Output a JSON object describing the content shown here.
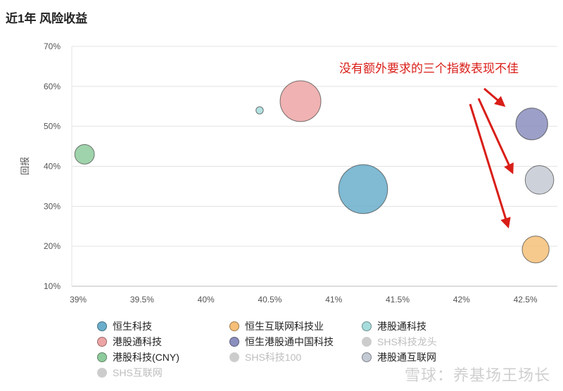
{
  "chart_data": {
    "type": "scatter",
    "title": "近1年 风险收益",
    "xlabel": "",
    "ylabel": "回报",
    "xlim": [
      38.95,
      42.75
    ],
    "ylim": [
      10,
      70
    ],
    "x_ticks": [
      "39%",
      "39.5%",
      "40%",
      "40.5%",
      "41%",
      "41.5%",
      "42%",
      "42.5%"
    ],
    "x_tick_values": [
      39,
      39.5,
      40,
      40.5,
      41,
      41.5,
      42,
      42.5
    ],
    "y_ticks": [
      "10%",
      "20%",
      "30%",
      "40%",
      "50%",
      "60%",
      "70%"
    ],
    "y_tick_values": [
      10,
      20,
      30,
      40,
      50,
      60,
      70
    ],
    "grid": "horizontal",
    "series": [
      {
        "name": "恒生科技",
        "x": 41.23,
        "y": 34.3,
        "size": 6.0,
        "color": "#6aaecb",
        "visible": true
      },
      {
        "name": "恒生互联网科技业",
        "x": 42.58,
        "y": 19.2,
        "size": 3.3,
        "color": "#f5bf78",
        "visible": true
      },
      {
        "name": "港股通科技",
        "x": 40.42,
        "y": 54.0,
        "size": 0.9,
        "color": "#a7dcdc",
        "visible": true
      },
      {
        "name": "港股通科技",
        "x": 40.74,
        "y": 56.3,
        "size": 5.0,
        "color": "#eda4a4",
        "visible": true
      },
      {
        "name": "恒生港股通中国科技",
        "x": 42.55,
        "y": 50.6,
        "size": 3.9,
        "color": "#8b8fbe",
        "visible": true
      },
      {
        "name": "SHS科技龙头",
        "x": null,
        "y": null,
        "size": null,
        "color": "#cccccc",
        "visible": false
      },
      {
        "name": "港股科技(CNY)",
        "x": 39.05,
        "y": 43.0,
        "size": 2.4,
        "color": "#8ecb9c",
        "visible": true
      },
      {
        "name": "SHS科技100",
        "x": null,
        "y": null,
        "size": null,
        "color": "#cccccc",
        "visible": false
      },
      {
        "name": "港股通互联网",
        "x": 42.61,
        "y": 36.6,
        "size": 3.5,
        "color": "#c4cad4",
        "visible": true
      },
      {
        "name": "SHS互联网",
        "x": null,
        "y": null,
        "size": null,
        "color": "#cccccc",
        "visible": false
      }
    ],
    "annotation": {
      "text": "没有额外要求的三个指数表现不佳",
      "color": "#d91e18"
    }
  },
  "watermark": "雪球：养基场王场长"
}
